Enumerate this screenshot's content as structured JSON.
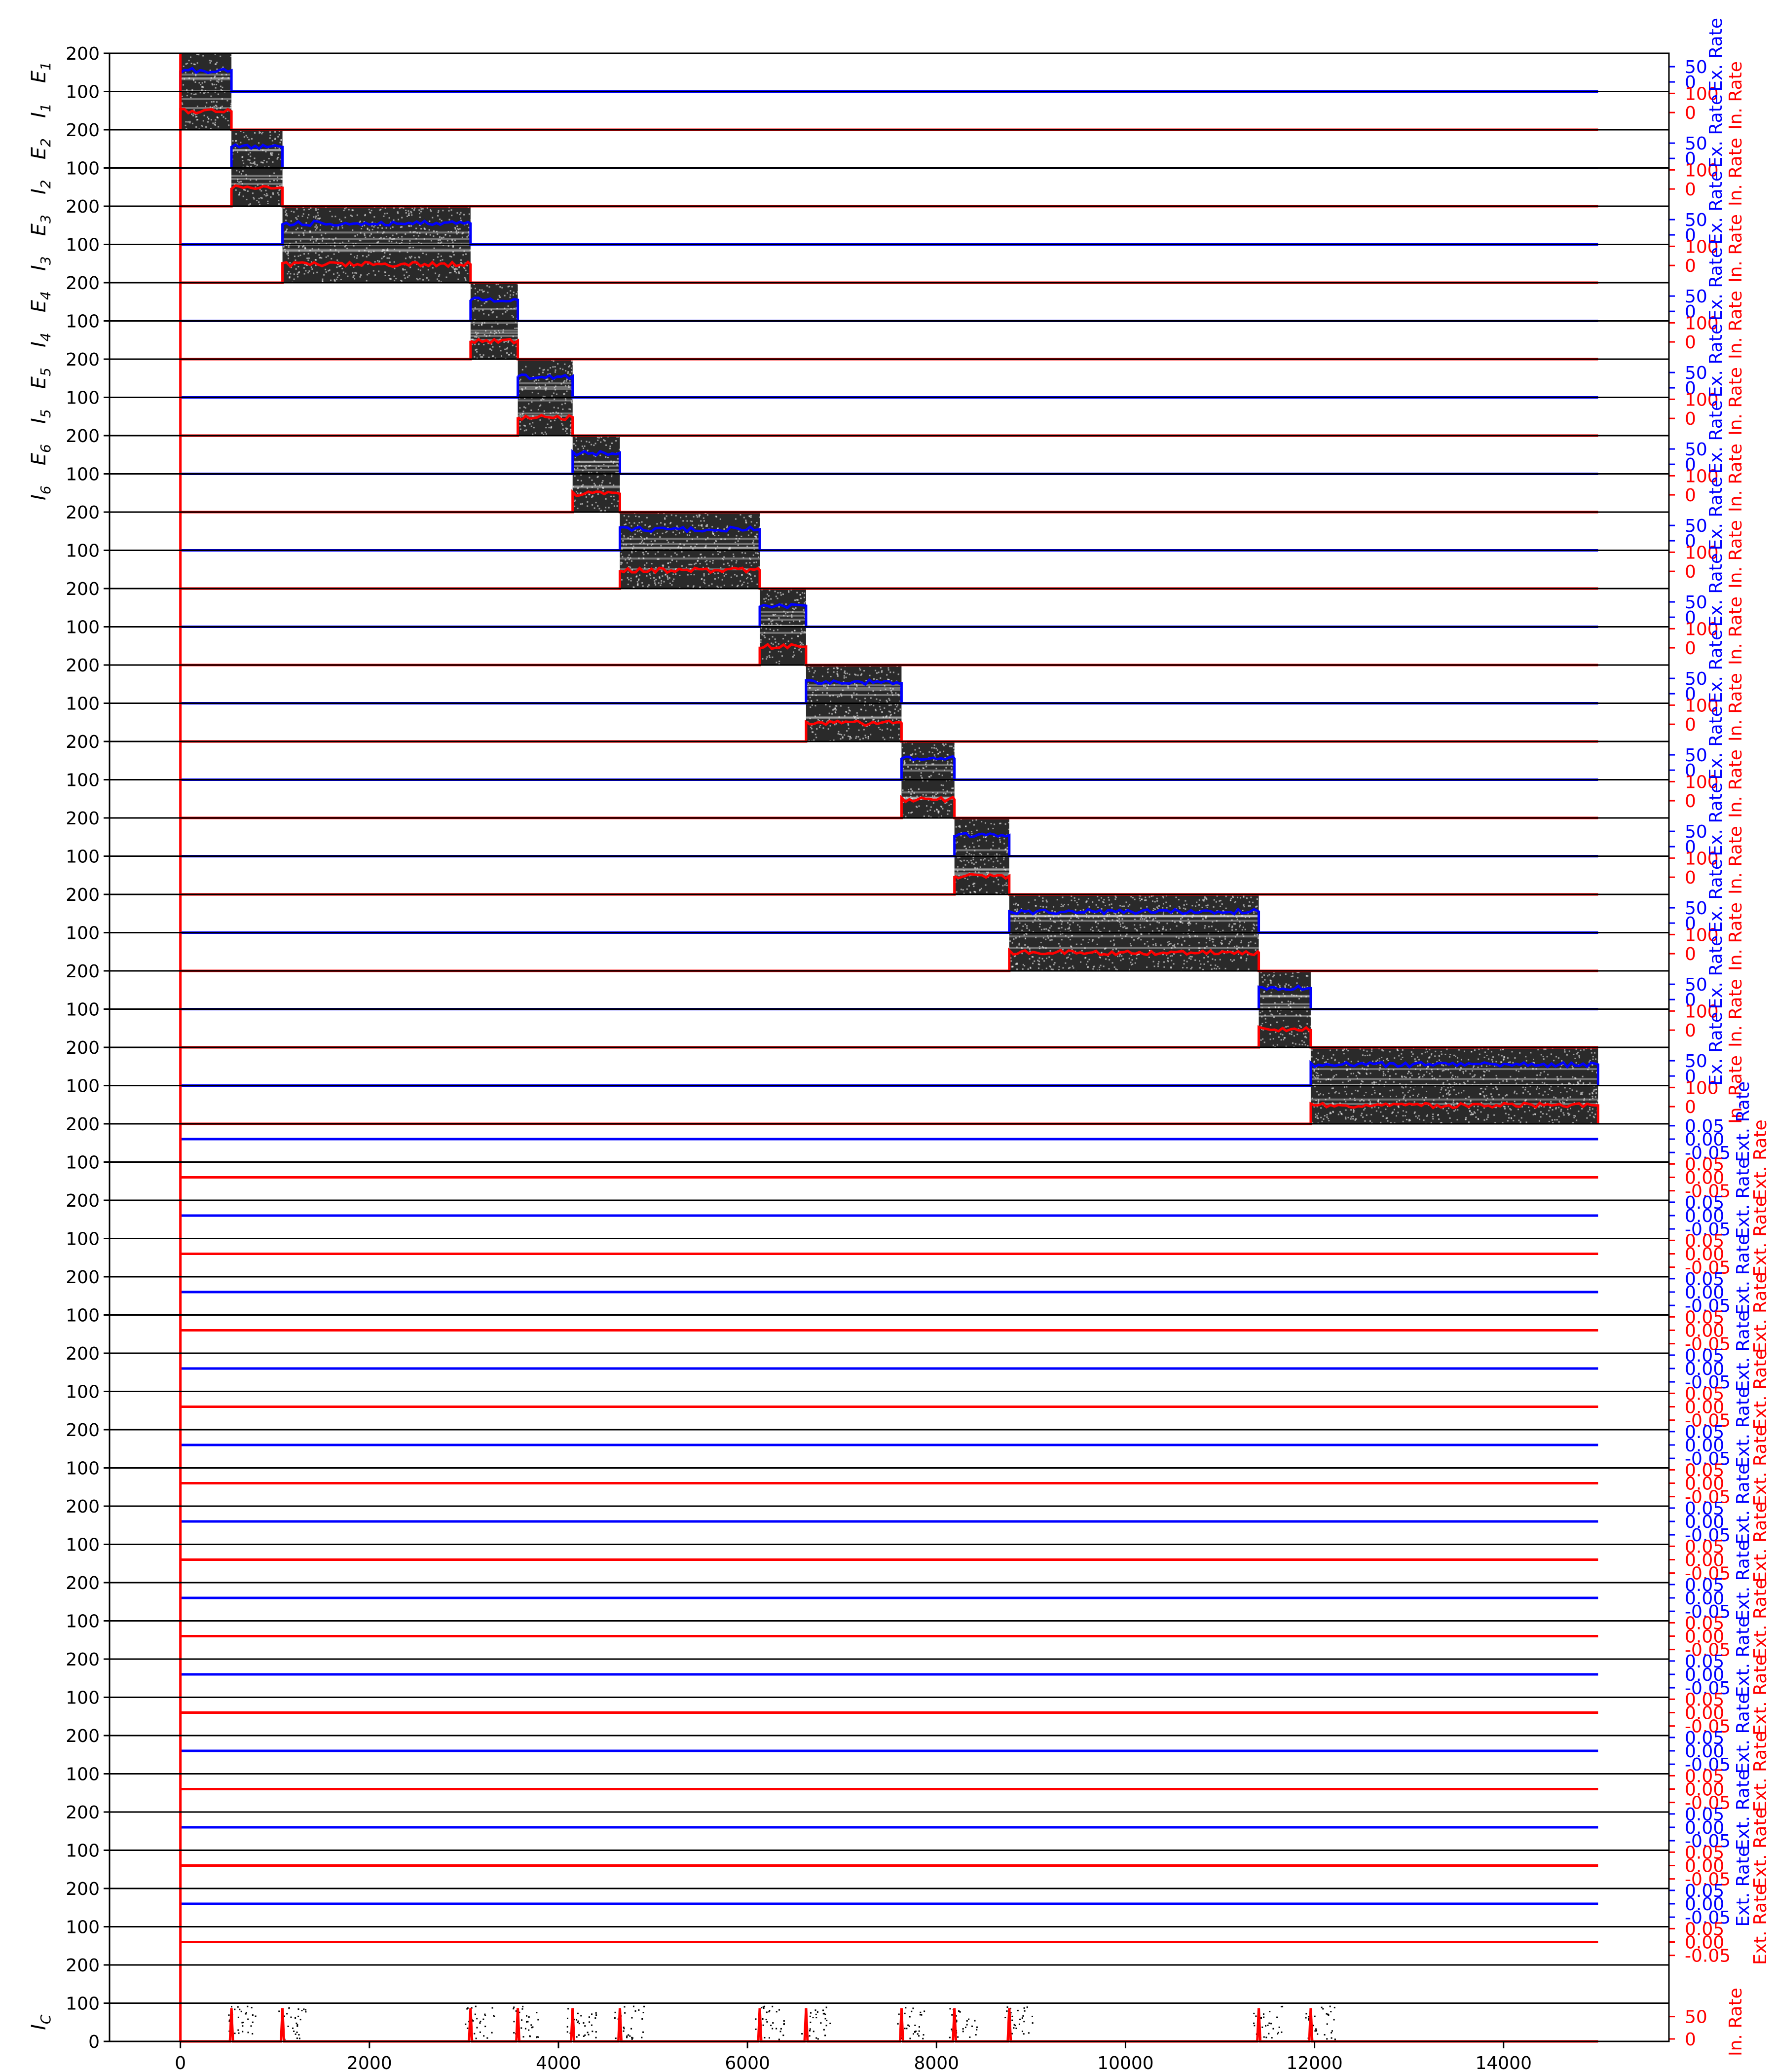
{
  "chart_data": {
    "type": "scatter",
    "description_free": true,
    "xlim": [
      -750,
      15750
    ],
    "x_ticks": [
      0,
      2000,
      4000,
      6000,
      8000,
      10000,
      12000,
      14000
    ],
    "left_ticks": [
      "200",
      "100"
    ],
    "left_bottom_tick": "0",
    "colors": {
      "raster": "#000000",
      "ex": "#0000ff",
      "in": "#ff0000",
      "grid": "#000000"
    },
    "rows": [
      {
        "e_label": "E",
        "e_sub": "1",
        "i_label": "I",
        "i_sub": "1"
      },
      {
        "e_label": "E",
        "e_sub": "2",
        "i_label": "I",
        "i_sub": "2"
      },
      {
        "e_label": "E",
        "e_sub": "3",
        "i_label": "I",
        "i_sub": "3"
      },
      {
        "e_label": "E",
        "e_sub": "4",
        "i_label": "I",
        "i_sub": "4"
      },
      {
        "e_label": "E",
        "e_sub": "5",
        "i_label": "I",
        "i_sub": "5"
      },
      {
        "e_label": "E",
        "e_sub": "6",
        "i_label": "I",
        "i_sub": "6"
      }
    ],
    "bottom_label": {
      "text": "I",
      "sub": "C"
    },
    "active_groups": [
      {
        "start": 0,
        "end": 540
      },
      {
        "start": 540,
        "end": 1080
      },
      {
        "start": 1080,
        "end": 3070
      },
      {
        "start": 3070,
        "end": 3570
      },
      {
        "start": 3570,
        "end": 4150
      },
      {
        "start": 4150,
        "end": 4650
      },
      {
        "start": 4650,
        "end": 6130
      },
      {
        "start": 6130,
        "end": 6620
      },
      {
        "start": 6620,
        "end": 7630
      },
      {
        "start": 7630,
        "end": 8190
      },
      {
        "start": 8190,
        "end": 8770
      },
      {
        "start": 8770,
        "end": 11410
      },
      {
        "start": 11410,
        "end": 11960
      },
      {
        "start": 11960,
        "end": 15000
      }
    ],
    "inactive_group_count": 11,
    "right_axis_active": {
      "ex_ticks": [
        "50",
        "0"
      ],
      "in_ticks": [
        "100",
        "0"
      ],
      "ex_label": "Ex. Rate",
      "in_label": "In. Rate"
    },
    "right_axis_inactive": {
      "ex_ticks": [
        "0.05",
        "0.00",
        "-0.05"
      ],
      "in_ticks": [
        "0.05",
        "0.00",
        "-0.05"
      ],
      "ex_label": "Ext. Rate",
      "in_label": "Ext. Rate"
    },
    "bottom_right_ticks": [
      "50",
      "0"
    ],
    "bottom_right_label": "In. Rate",
    "bottom_spikes": [
      540,
      1080,
      3070,
      3570,
      4150,
      4650,
      6130,
      6620,
      7630,
      8190,
      8770,
      11410,
      11960
    ],
    "sim_end": 15000
  }
}
